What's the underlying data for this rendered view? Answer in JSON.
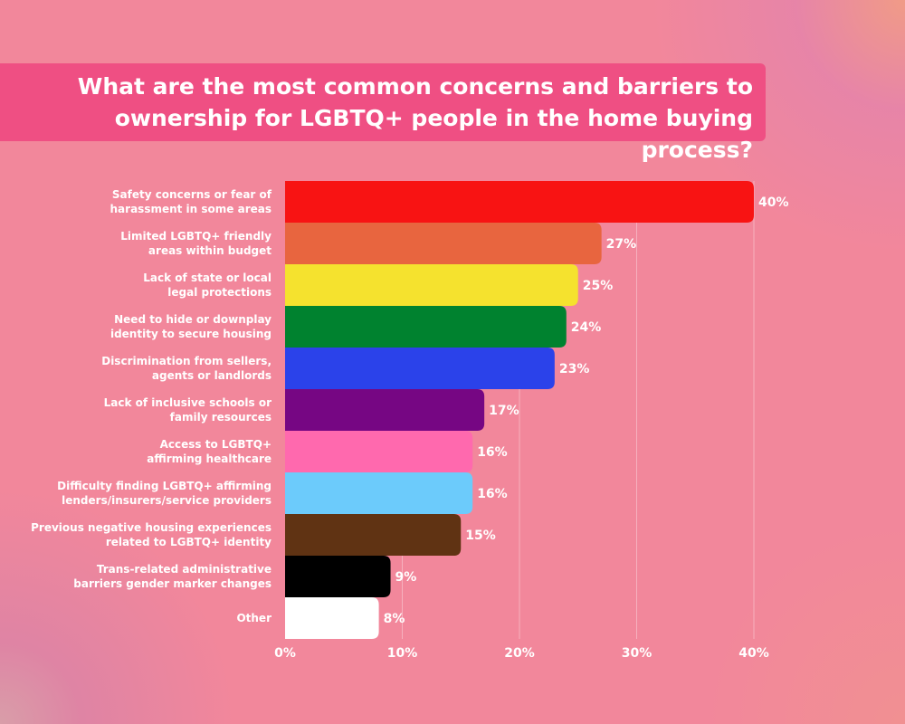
{
  "chart_data": {
    "type": "bar",
    "orientation": "horizontal",
    "title": "What are the most common concerns and barriers to\nownership for LGBTQ+ people in the home buying process?",
    "categories": [
      [
        "Safety concerns or fear of",
        "harassment in some areas"
      ],
      [
        "Limited LGBTQ+ friendly",
        "areas within budget"
      ],
      [
        "Lack of state or local",
        "legal protections"
      ],
      [
        "Need to hide or downplay",
        "identity to secure housing"
      ],
      [
        "Discrimination from sellers,",
        "agents or landlords"
      ],
      [
        "Lack of inclusive schools or",
        "family resources"
      ],
      [
        "Access to LGBTQ+",
        "affirming healthcare"
      ],
      [
        "Difficulty finding LGBTQ+ affirming",
        "lenders/insurers/service providers"
      ],
      [
        "Previous negative housing experiences",
        "related to LGBTQ+ identity"
      ],
      [
        "Trans-related administrative",
        "barriers gender marker changes"
      ],
      [
        "Other"
      ]
    ],
    "values": [
      40,
      27,
      25,
      24,
      23,
      17,
      16,
      16,
      15,
      9,
      8
    ],
    "data_labels": [
      "40%",
      "27%",
      "25%",
      "24%",
      "23%",
      "17%",
      "16%",
      "16%",
      "15%",
      "9%",
      "8%"
    ],
    "colors": [
      "#f81313",
      "#e8653f",
      "#f5e22e",
      "#00822f",
      "#2b42ea",
      "#760683",
      "#ff69ae",
      "#6ccbfb",
      "#603313",
      "#000000",
      "#ffffff"
    ],
    "xlim": [
      0,
      40
    ],
    "xticks": [
      0,
      10,
      20,
      30,
      40
    ],
    "xtick_labels": [
      "0%",
      "10%",
      "20%",
      "30%",
      "40%"
    ],
    "grid": true,
    "xlabel": "",
    "ylabel": ""
  },
  "colors": {
    "background": "#f2879b",
    "title_box": "#ef4f83",
    "text": "#ffffff"
  }
}
